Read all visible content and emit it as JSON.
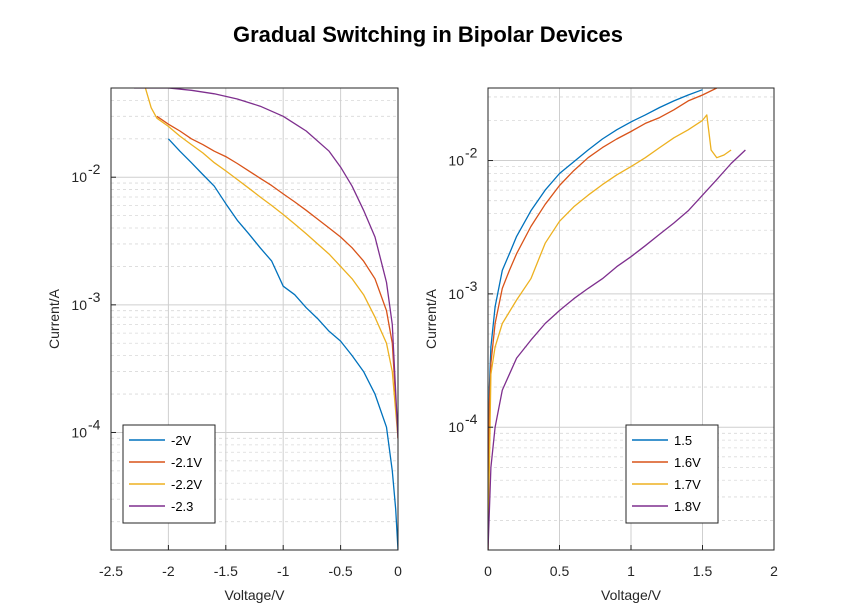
{
  "figure_title": "Gradual Switching in Bipolar Devices",
  "colors": [
    "#0072BD",
    "#D95319",
    "#EDB120",
    "#7E2F8E"
  ],
  "chart_data": [
    {
      "type": "line",
      "panel": "left",
      "xlabel": "Voltage/V",
      "ylabel": "Current/A",
      "xlim": [
        -2.5,
        0
      ],
      "xscale": "linear",
      "yscale": "log",
      "ylim": [
        1.2e-05,
        0.05
      ],
      "xticks": [
        -2.5,
        -2,
        -1.5,
        -1,
        -0.5,
        0
      ],
      "xtick_labels": [
        "-2.5",
        "-2",
        "-1.5",
        "-1",
        "-0.5",
        "0"
      ],
      "yticks": [
        0.0001,
        0.001,
        0.01
      ],
      "ytick_labels": [
        {
          "base": "10",
          "exp": "-4"
        },
        {
          "base": "10",
          "exp": "-3"
        },
        {
          "base": "10",
          "exp": "-2"
        }
      ],
      "grid": true,
      "minor_grid": true,
      "legend_location": "bottom-left",
      "series": [
        {
          "name": "-2V",
          "x": [
            -2.0,
            -1.9,
            -1.8,
            -1.7,
            -1.6,
            -1.5,
            -1.4,
            -1.3,
            -1.2,
            -1.1,
            -1.0,
            -0.9,
            -0.8,
            -0.7,
            -0.6,
            -0.5,
            -0.4,
            -0.3,
            -0.2,
            -0.1,
            -0.05,
            -0.02,
            0.0
          ],
          "y": [
            0.02,
            0.016,
            0.013,
            0.0105,
            0.0085,
            0.0062,
            0.0046,
            0.0036,
            0.0028,
            0.0022,
            0.0014,
            0.0012,
            0.00095,
            0.00078,
            0.00062,
            0.00052,
            0.0004,
            0.0003,
            0.0002,
            0.00011,
            5e-05,
            2.5e-05,
            1.2e-05
          ]
        },
        {
          "name": "-2.1V",
          "x": [
            -2.1,
            -2.0,
            -1.9,
            -1.8,
            -1.7,
            -1.6,
            -1.5,
            -1.4,
            -1.3,
            -1.2,
            -1.1,
            -1.0,
            -0.9,
            -0.8,
            -0.7,
            -0.6,
            -0.5,
            -0.4,
            -0.3,
            -0.2,
            -0.1,
            -0.05,
            0.0
          ],
          "y": [
            0.03,
            0.026,
            0.023,
            0.02,
            0.018,
            0.016,
            0.0145,
            0.0128,
            0.0112,
            0.0098,
            0.0086,
            0.0074,
            0.0064,
            0.0055,
            0.0047,
            0.004,
            0.0034,
            0.0028,
            0.0022,
            0.0016,
            0.0009,
            0.0005,
            9e-05
          ]
        },
        {
          "name": "-2.2V",
          "x": [
            -2.2,
            -2.15,
            -2.1,
            -2.0,
            -1.9,
            -1.8,
            -1.7,
            -1.6,
            -1.5,
            -1.4,
            -1.3,
            -1.2,
            -1.1,
            -1.0,
            -0.9,
            -0.8,
            -0.7,
            -0.6,
            -0.5,
            -0.4,
            -0.3,
            -0.2,
            -0.1,
            -0.05,
            0.0
          ],
          "y": [
            0.05,
            0.035,
            0.029,
            0.025,
            0.021,
            0.018,
            0.0155,
            0.013,
            0.0112,
            0.0096,
            0.0082,
            0.007,
            0.006,
            0.0051,
            0.0043,
            0.0036,
            0.003,
            0.0025,
            0.002,
            0.0016,
            0.0012,
            0.0008,
            0.0005,
            0.0003,
            9e-05
          ]
        },
        {
          "name": "-2.3",
          "x": [
            -2.3,
            -2.1,
            -2.0,
            -1.8,
            -1.6,
            -1.4,
            -1.2,
            -1.0,
            -0.8,
            -0.6,
            -0.5,
            -0.4,
            -0.3,
            -0.2,
            -0.1,
            -0.05,
            0.0
          ],
          "y": [
            0.05,
            0.05,
            0.05,
            0.048,
            0.045,
            0.041,
            0.036,
            0.03,
            0.023,
            0.016,
            0.012,
            0.0085,
            0.0055,
            0.0034,
            0.0015,
            0.0007,
            9e-05
          ]
        }
      ]
    },
    {
      "type": "line",
      "panel": "right",
      "xlabel": "Voltage/V",
      "ylabel": "Current/A",
      "xlim": [
        0,
        2
      ],
      "xscale": "linear",
      "yscale": "log",
      "ylim": [
        1.2e-05,
        0.035
      ],
      "xticks": [
        0,
        0.5,
        1,
        1.5,
        2
      ],
      "xtick_labels": [
        "0",
        "0.5",
        "1",
        "1.5",
        "2"
      ],
      "yticks": [
        0.0001,
        0.001,
        0.01
      ],
      "ytick_labels": [
        {
          "base": "10",
          "exp": "-4"
        },
        {
          "base": "10",
          "exp": "-3"
        },
        {
          "base": "10",
          "exp": "-2"
        }
      ],
      "grid": true,
      "minor_grid": true,
      "legend_location": "bottom-right",
      "series": [
        {
          "name": "1.5",
          "x": [
            0.0,
            0.01,
            0.02,
            0.05,
            0.1,
            0.15,
            0.2,
            0.3,
            0.4,
            0.5,
            0.6,
            0.7,
            0.8,
            0.9,
            1.0,
            1.1,
            1.2,
            1.3,
            1.4,
            1.5
          ],
          "y": [
            1.2e-05,
            0.0002,
            0.0004,
            0.0008,
            0.0015,
            0.002,
            0.0027,
            0.0042,
            0.006,
            0.008,
            0.0098,
            0.012,
            0.0145,
            0.017,
            0.0195,
            0.022,
            0.025,
            0.028,
            0.031,
            0.034
          ]
        },
        {
          "name": "1.6V",
          "x": [
            0.0,
            0.01,
            0.02,
            0.05,
            0.1,
            0.15,
            0.2,
            0.3,
            0.4,
            0.5,
            0.6,
            0.7,
            0.8,
            0.9,
            1.0,
            1.1,
            1.2,
            1.3,
            1.4,
            1.5,
            1.6
          ],
          "y": [
            1.2e-05,
            0.00015,
            0.0003,
            0.0006,
            0.0011,
            0.0015,
            0.002,
            0.0032,
            0.0047,
            0.0065,
            0.0084,
            0.0105,
            0.0125,
            0.0145,
            0.0165,
            0.019,
            0.021,
            0.024,
            0.028,
            0.031,
            0.035
          ]
        },
        {
          "name": "1.7V",
          "x": [
            0.0,
            0.02,
            0.05,
            0.1,
            0.2,
            0.3,
            0.4,
            0.5,
            0.6,
            0.7,
            0.8,
            0.9,
            1.0,
            1.1,
            1.2,
            1.3,
            1.4,
            1.5,
            1.53,
            1.56,
            1.6,
            1.65,
            1.7
          ],
          "y": [
            1.2e-05,
            0.00025,
            0.0004,
            0.0006,
            0.0009,
            0.0013,
            0.0024,
            0.0035,
            0.0045,
            0.0055,
            0.0066,
            0.0078,
            0.009,
            0.0105,
            0.0125,
            0.0148,
            0.017,
            0.02,
            0.022,
            0.012,
            0.0105,
            0.011,
            0.012
          ]
        },
        {
          "name": "1.8V",
          "x": [
            0.0,
            0.02,
            0.05,
            0.1,
            0.2,
            0.3,
            0.4,
            0.5,
            0.6,
            0.7,
            0.8,
            0.9,
            1.0,
            1.1,
            1.2,
            1.3,
            1.4,
            1.5,
            1.6,
            1.7,
            1.8
          ],
          "y": [
            1.2e-05,
            5e-05,
            0.0001,
            0.00019,
            0.00033,
            0.00045,
            0.0006,
            0.00075,
            0.00092,
            0.0011,
            0.0013,
            0.0016,
            0.0019,
            0.0023,
            0.0028,
            0.0034,
            0.0042,
            0.0055,
            0.0072,
            0.0095,
            0.012
          ]
        }
      ]
    }
  ]
}
